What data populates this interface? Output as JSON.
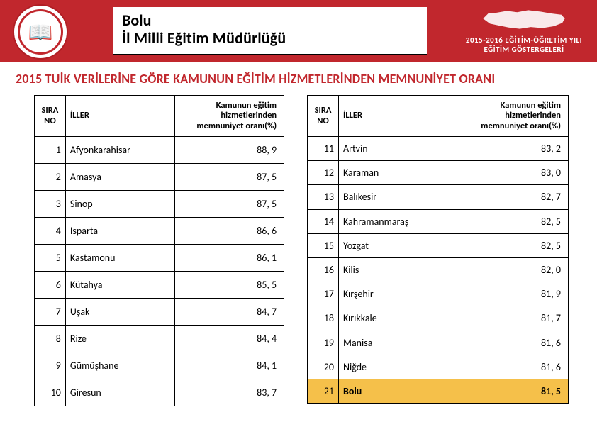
{
  "header": {
    "title_line1": "Bolu",
    "title_line2": "İl Milli Eğitim Müdürlüğü",
    "right_year": "2015-2016 EĞİTİM-ÖĞRETİM YILI",
    "right_sub": "EĞİTİM GÖSTERGELERİ"
  },
  "section_title": "2015 TUİK VERİLERİNE GÖRE KAMUNUN EĞİTİM HİZMETLERİNDEN MEMNUNİYET ORANI",
  "columns": {
    "sira_no": "SIRA NO",
    "iller": "İLLER",
    "value": "Kamunun eğitim hizmetlerinden memnuniyet oranı(%)"
  },
  "left_rows": [
    {
      "no": "1",
      "il": "Afyonkarahisar",
      "val": "88, 9"
    },
    {
      "no": "2",
      "il": "Amasya",
      "val": "87, 5"
    },
    {
      "no": "3",
      "il": "Sinop",
      "val": "87, 5"
    },
    {
      "no": "4",
      "il": "Isparta",
      "val": "86, 6"
    },
    {
      "no": "5",
      "il": "Kastamonu",
      "val": "86, 1"
    },
    {
      "no": "6",
      "il": "Kütahya",
      "val": "85, 5"
    },
    {
      "no": "7",
      "il": "Uşak",
      "val": "84, 7"
    },
    {
      "no": "8",
      "il": "Rize",
      "val": "84, 4"
    },
    {
      "no": "9",
      "il": "Gümüşhane",
      "val": "84, 1"
    },
    {
      "no": "10",
      "il": "Giresun",
      "val": "83, 7"
    }
  ],
  "right_rows": [
    {
      "no": "11",
      "il": "Artvin",
      "val": "83, 2",
      "highlight": false
    },
    {
      "no": "12",
      "il": "Karaman",
      "val": "83, 0",
      "highlight": false
    },
    {
      "no": "13",
      "il": "Balıkesir",
      "val": "82, 7",
      "highlight": false
    },
    {
      "no": "14",
      "il": "Kahramanmaraş",
      "val": "82, 5",
      "highlight": false
    },
    {
      "no": "15",
      "il": "Yozgat",
      "val": "82, 5",
      "highlight": false
    },
    {
      "no": "16",
      "il": "Kilis",
      "val": "82, 0",
      "highlight": false
    },
    {
      "no": "17",
      "il": "Kırşehir",
      "val": "81, 9",
      "highlight": false
    },
    {
      "no": "18",
      "il": "Kırıkkale",
      "val": "81, 7",
      "highlight": false
    },
    {
      "no": "19",
      "il": "Manisa",
      "val": "81, 6",
      "highlight": false
    },
    {
      "no": "20",
      "il": "Niğde",
      "val": "81, 6",
      "highlight": false
    },
    {
      "no": "21",
      "il": "Bolu",
      "val": "81, 5",
      "highlight": true
    }
  ],
  "colors": {
    "header_bg": "#c1272d",
    "highlight_bg": "#f5c04a",
    "title_color": "#c1272d",
    "border": "#000000",
    "text": "#000000"
  }
}
